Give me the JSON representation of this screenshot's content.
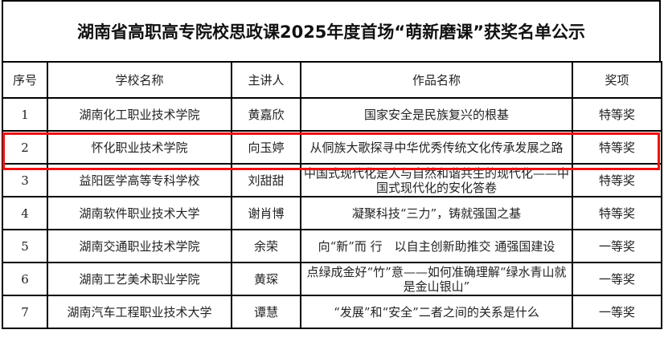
{
  "title": "湖南省高职高专院校思政课2025年度首场“萌新磨课”获奖名单公示",
  "columns": [
    "序号",
    "学校名称",
    "主讲人",
    "作品名称",
    "奖项"
  ],
  "rows": [
    {
      "no": "1",
      "school": "湖南化工职业技术学院",
      "speaker": "黄嘉欣",
      "work": "国家安全是民族复兴的根基",
      "award": "特等奖"
    },
    {
      "no": "2",
      "school": "怀化职业技术学院",
      "speaker": "向玉婷",
      "work": "从侗族大歌探寻中华优秀传统文化传承发展之路",
      "award": "特等奖"
    },
    {
      "no": "3",
      "school": "益阳医学高等专科学校",
      "speaker": "刘甜甜",
      "work": "中国式现代化是人与自然和谐共生的现代化——中国式现代化的安化答卷",
      "award": "特等奖"
    },
    {
      "no": "4",
      "school": "湖南软件职业技术大学",
      "speaker": "谢肖博",
      "work": "凝聚科技“三力”，铸就强国之基",
      "award": "特等奖"
    },
    {
      "no": "5",
      "school": "湖南交通职业技术学院",
      "speaker": "余荣",
      "work": "向“新”而 行　以自主创新助推交 通强国建设",
      "award": "一等奖"
    },
    {
      "no": "6",
      "school": "湖南工艺美术职业学院",
      "speaker": "黄琛",
      "work": "点绿成金好“竹”意——如何准确理解“绿水青山就是金山银山”",
      "award": "一等奖"
    },
    {
      "no": "7",
      "school": "湖南汽车工程职业技术大学",
      "speaker": "谭慧",
      "work": "“发展”和“安全”二者之间的关系是什么",
      "award": "一等奖"
    }
  ],
  "highlight_color": "#f01010"
}
